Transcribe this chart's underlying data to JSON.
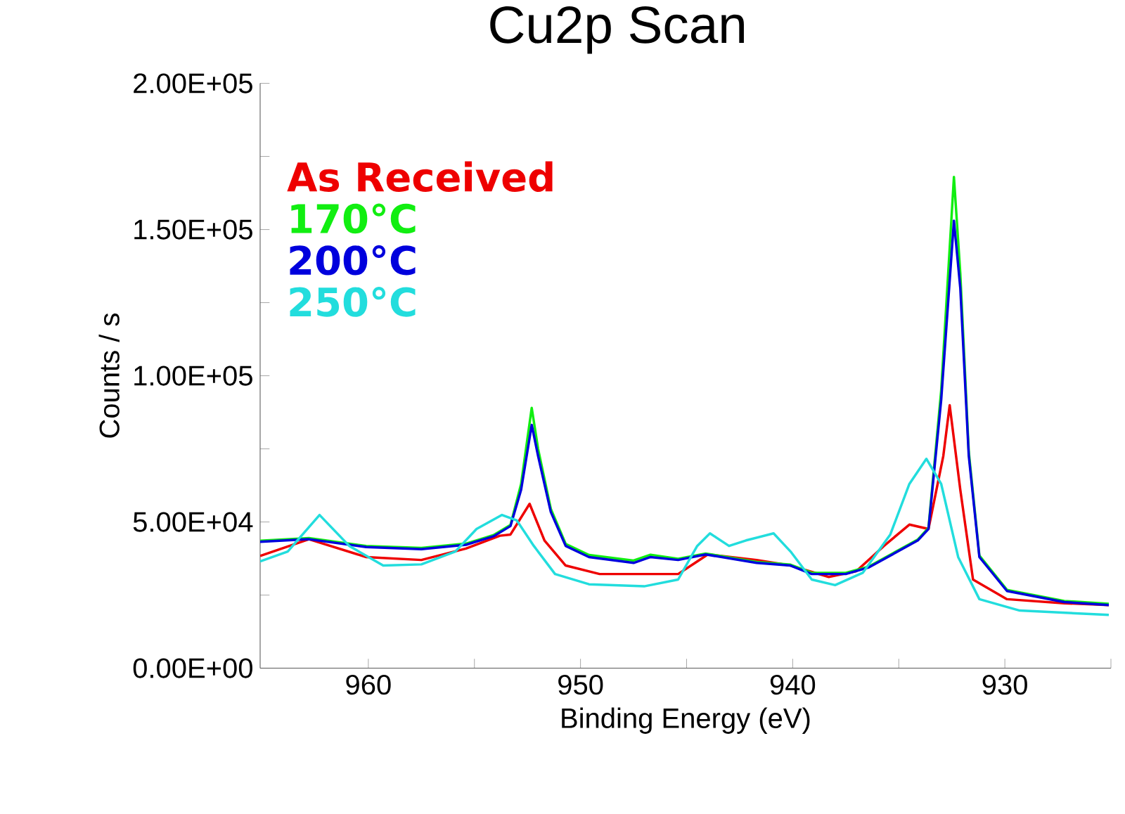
{
  "chart_data": {
    "type": "line",
    "title": "Cu2p Scan",
    "xlabel": "Binding Energy (eV)",
    "ylabel": "Counts / s",
    "xlim": [
      965.1,
      925
    ],
    "ylim": [
      0,
      200000
    ],
    "xticks": [
      960,
      {
        "value": 955,
        "label": null
      },
      950,
      {
        "value": 945,
        "label": null
      },
      940,
      {
        "value": 935,
        "label": null
      },
      930,
      {
        "value": 925,
        "label": null
      }
    ],
    "yticks": [
      {
        "value": 0,
        "label": "0.00E+00"
      },
      {
        "value": 25000,
        "label": null
      },
      {
        "value": 50000,
        "label": "5.00E+04"
      },
      {
        "value": 75000,
        "label": null
      },
      {
        "value": 100000,
        "label": "1.00E+05"
      },
      {
        "value": 125000,
        "label": null
      },
      {
        "value": 150000,
        "label": "1.50E+05"
      },
      {
        "value": 175000,
        "label": null
      },
      {
        "value": 200000,
        "label": "2.00E+05"
      }
    ],
    "grid": false,
    "legend": "top left",
    "marker": "none",
    "line_style": "solid",
    "series": [
      {
        "name": "As Received",
        "color": "#ee0000",
        "x": [
          965.1,
          962.8,
          960.1,
          957.5,
          955.4,
          953.8,
          953.3,
          952.4,
          951.7,
          950.7,
          949.1,
          945.4,
          944.6,
          944.0,
          941.7,
          940.1,
          938.3,
          937.0,
          935.7,
          934.5,
          933.6,
          932.9,
          932.6,
          932.1,
          931.5,
          929.9,
          927.2,
          925.1
        ],
        "values": [
          38400,
          44100,
          38000,
          37000,
          40900,
          45300,
          45700,
          56200,
          43700,
          35100,
          32200,
          32200,
          36000,
          38900,
          37000,
          35100,
          31200,
          33200,
          41800,
          49100,
          47600,
          72600,
          89900,
          61000,
          30300,
          23600,
          22200,
          21600
        ]
      },
      {
        "name": "170°C",
        "color": "#11ee11",
        "x": [
          965.1,
          962.8,
          960.1,
          957.5,
          955.4,
          954.1,
          953.3,
          952.8,
          952.3,
          952.0,
          951.4,
          950.7,
          949.6,
          947.5,
          946.7,
          945.4,
          944.1,
          941.7,
          940.1,
          939.1,
          937.5,
          936.4,
          934.1,
          933.6,
          933.0,
          932.4,
          932.1,
          931.7,
          931.2,
          929.9,
          927.2,
          925.1
        ],
        "values": [
          43600,
          44500,
          41800,
          41100,
          42600,
          45500,
          49000,
          63000,
          89000,
          75000,
          54500,
          42500,
          38700,
          36800,
          38800,
          37400,
          39200,
          36300,
          35400,
          32600,
          32600,
          34800,
          44000,
          48000,
          95000,
          168000,
          135000,
          74000,
          38500,
          26800,
          23000,
          22000
        ]
      },
      {
        "name": "200°C",
        "color": "#0000dd",
        "x": [
          965.1,
          962.8,
          960.1,
          957.5,
          955.4,
          954.1,
          953.3,
          952.8,
          952.3,
          952.0,
          951.4,
          950.7,
          949.6,
          947.5,
          946.7,
          945.4,
          944.1,
          941.7,
          940.1,
          939.1,
          937.5,
          936.4,
          934.1,
          933.6,
          933.0,
          932.4,
          932.1,
          931.7,
          931.2,
          929.9,
          927.2,
          925.1
        ],
        "values": [
          43200,
          44100,
          41400,
          40700,
          42200,
          45100,
          48600,
          61000,
          83200,
          72600,
          53400,
          41800,
          38000,
          36000,
          38000,
          37000,
          38900,
          36000,
          35100,
          32200,
          32200,
          34500,
          43700,
          47600,
          91800,
          153000,
          130000,
          72600,
          38000,
          26400,
          22600,
          21600
        ]
      },
      {
        "name": "250°C",
        "color": "#22dddd",
        "x": [
          965.1,
          963.8,
          962.3,
          960.9,
          959.3,
          957.5,
          955.9,
          954.9,
          953.7,
          953.0,
          952.2,
          951.2,
          949.6,
          947.0,
          945.4,
          944.5,
          943.9,
          943.0,
          942.2,
          940.9,
          940.1,
          939.1,
          938.0,
          936.7,
          935.4,
          934.5,
          933.7,
          933.0,
          932.2,
          931.2,
          929.3,
          925.1
        ],
        "values": [
          36500,
          39900,
          52400,
          41800,
          35100,
          35500,
          39900,
          47600,
          52400,
          50500,
          41800,
          32200,
          28700,
          28000,
          30300,
          41800,
          46100,
          41800,
          43700,
          46100,
          39900,
          30300,
          28400,
          32600,
          45700,
          63000,
          71600,
          63000,
          38000,
          23600,
          19700,
          18200
        ]
      }
    ]
  }
}
